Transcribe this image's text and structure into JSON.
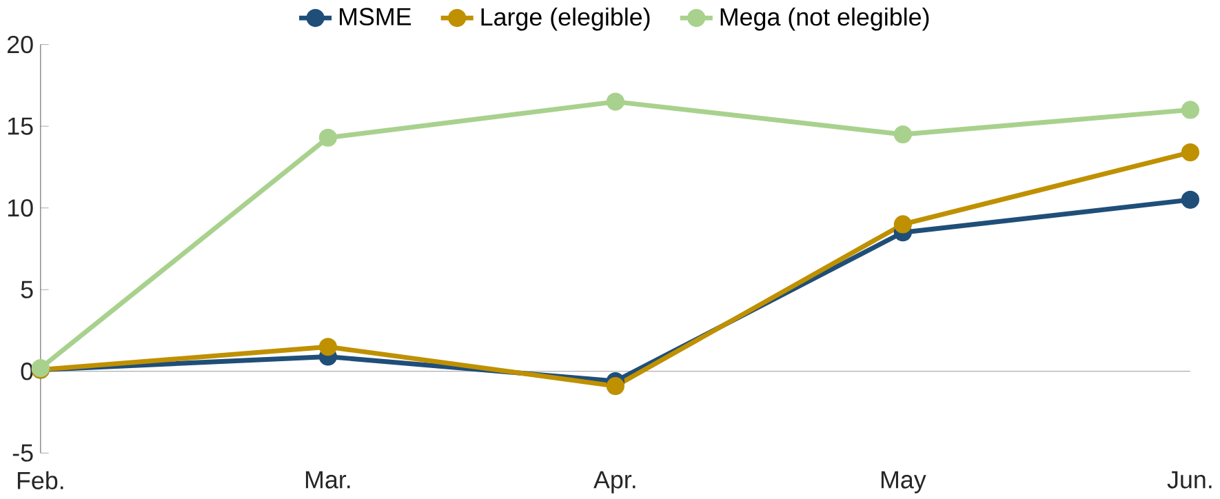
{
  "chart_data": {
    "type": "line",
    "categories": [
      "Feb.",
      "Mar.",
      "Apr.",
      "May",
      "Jun."
    ],
    "series": [
      {
        "name": "MSME",
        "color": "#1f4e79",
        "values": [
          0.1,
          0.9,
          -0.6,
          8.5,
          10.5
        ]
      },
      {
        "name": "Large (elegible)",
        "color": "#bf9000",
        "values": [
          0.1,
          1.5,
          -0.9,
          9.0,
          13.4
        ]
      },
      {
        "name": "Mega (not elegible)",
        "color": "#a9d18e",
        "values": [
          0.2,
          14.3,
          16.5,
          14.5,
          16.0
        ]
      }
    ],
    "ref_lines": [
      {
        "axis": "y",
        "value": 0,
        "color": "#999999"
      }
    ],
    "ylim": [
      -5,
      20
    ],
    "yticks": [
      -5,
      0,
      5,
      10,
      15,
      20
    ],
    "grid": false,
    "legend": "top",
    "marker": "circle",
    "line_style": "solid"
  }
}
